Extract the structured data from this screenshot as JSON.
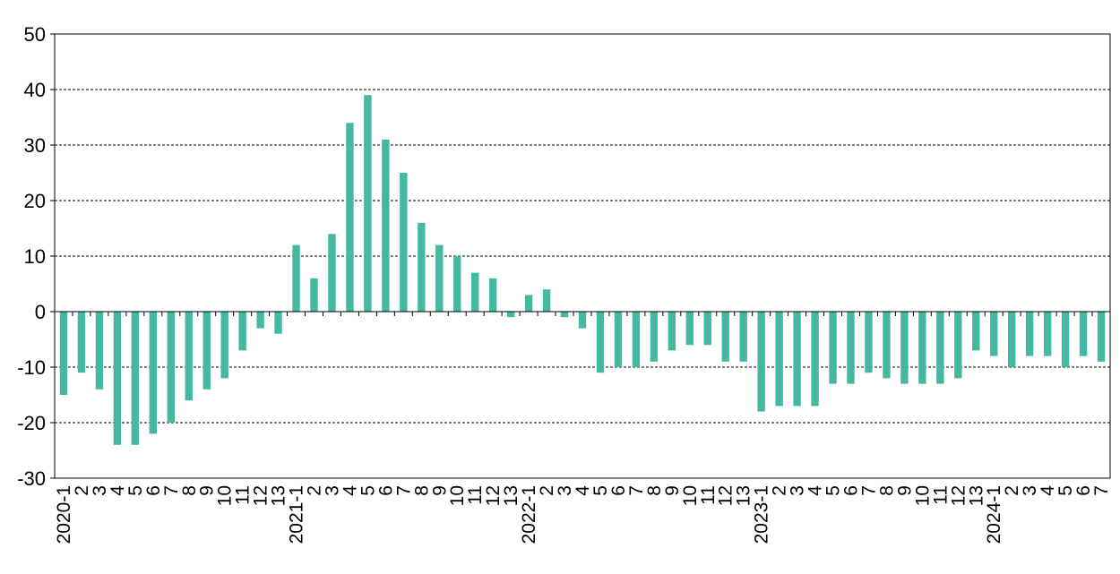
{
  "chart_data": {
    "type": "bar",
    "title": "",
    "xlabel": "",
    "ylabel": "",
    "ylim": [
      -30,
      50
    ],
    "yticks": [
      -30,
      -20,
      -10,
      0,
      10,
      20,
      30,
      40,
      50
    ],
    "grid": "horizontal-dashed",
    "bar_color": "#45b8a2",
    "categories": [
      "2020-1",
      "2",
      "3",
      "4",
      "5",
      "6",
      "7",
      "8",
      "9",
      "10",
      "11",
      "12",
      "13",
      "2021-1",
      "2",
      "3",
      "4",
      "5",
      "6",
      "7",
      "8",
      "9",
      "10",
      "11",
      "12",
      "13",
      "2022-1",
      "2",
      "3",
      "4",
      "5",
      "6",
      "7",
      "8",
      "9",
      "10",
      "11",
      "12",
      "13",
      "2023-1",
      "2",
      "3",
      "4",
      "5",
      "6",
      "7",
      "8",
      "9",
      "10",
      "11",
      "12",
      "13",
      "2024-1",
      "2",
      "3",
      "4",
      "5",
      "6",
      "7"
    ],
    "values": [
      -15,
      -11,
      -14,
      -24,
      -24,
      -22,
      -20,
      -16,
      -14,
      -12,
      -7,
      -3,
      -4,
      12,
      6,
      14,
      34,
      39,
      31,
      25,
      16,
      12,
      10,
      7,
      6,
      -1,
      3,
      4,
      -1,
      -3,
      -11,
      -10,
      -10,
      -9,
      -7,
      -6,
      -6,
      -9,
      -9,
      -18,
      -17,
      -17,
      -17,
      -13,
      -13,
      -11,
      -12,
      -13,
      -13,
      -13,
      -12,
      -7,
      -8,
      -10,
      -8,
      -8,
      -10,
      -8,
      -9
    ]
  }
}
